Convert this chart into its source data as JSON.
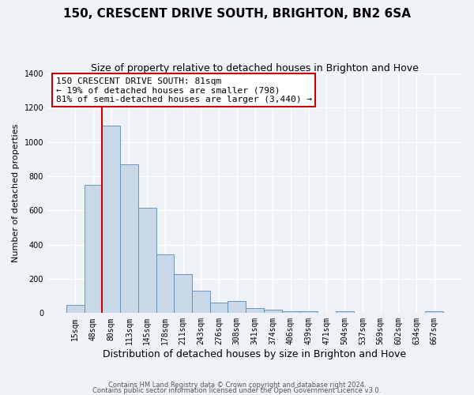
{
  "title": "150, CRESCENT DRIVE SOUTH, BRIGHTON, BN2 6SA",
  "subtitle": "Size of property relative to detached houses in Brighton and Hove",
  "xlabel": "Distribution of detached houses by size in Brighton and Hove",
  "ylabel": "Number of detached properties",
  "categories": [
    "15sqm",
    "48sqm",
    "80sqm",
    "113sqm",
    "145sqm",
    "178sqm",
    "211sqm",
    "243sqm",
    "276sqm",
    "308sqm",
    "341sqm",
    "374sqm",
    "406sqm",
    "439sqm",
    "471sqm",
    "504sqm",
    "537sqm",
    "569sqm",
    "602sqm",
    "634sqm",
    "667sqm"
  ],
  "values": [
    50,
    750,
    1095,
    868,
    615,
    345,
    228,
    133,
    63,
    73,
    30,
    20,
    13,
    10,
    0,
    10,
    0,
    0,
    0,
    0,
    10
  ],
  "bar_color": "#c8d8e8",
  "bar_edge_color": "#5a8ab0",
  "vline_color": "#cc0000",
  "vline_index": 2,
  "ylim": [
    0,
    1400
  ],
  "yticks": [
    0,
    200,
    400,
    600,
    800,
    1000,
    1200,
    1400
  ],
  "annotation_title": "150 CRESCENT DRIVE SOUTH: 81sqm",
  "annotation_line1": "← 19% of detached houses are smaller (798)",
  "annotation_line2": "81% of semi-detached houses are larger (3,440) →",
  "annotation_box_color": "#ffffff",
  "annotation_box_edge": "#cc0000",
  "footer1": "Contains HM Land Registry data © Crown copyright and database right 2024.",
  "footer2": "Contains public sector information licensed under the Open Government Licence v3.0.",
  "bg_color": "#eef2f7",
  "grid_color": "#ffffff",
  "title_fontsize": 11,
  "subtitle_fontsize": 9,
  "xlabel_fontsize": 9,
  "ylabel_fontsize": 8,
  "tick_fontsize": 7,
  "ann_fontsize": 8
}
